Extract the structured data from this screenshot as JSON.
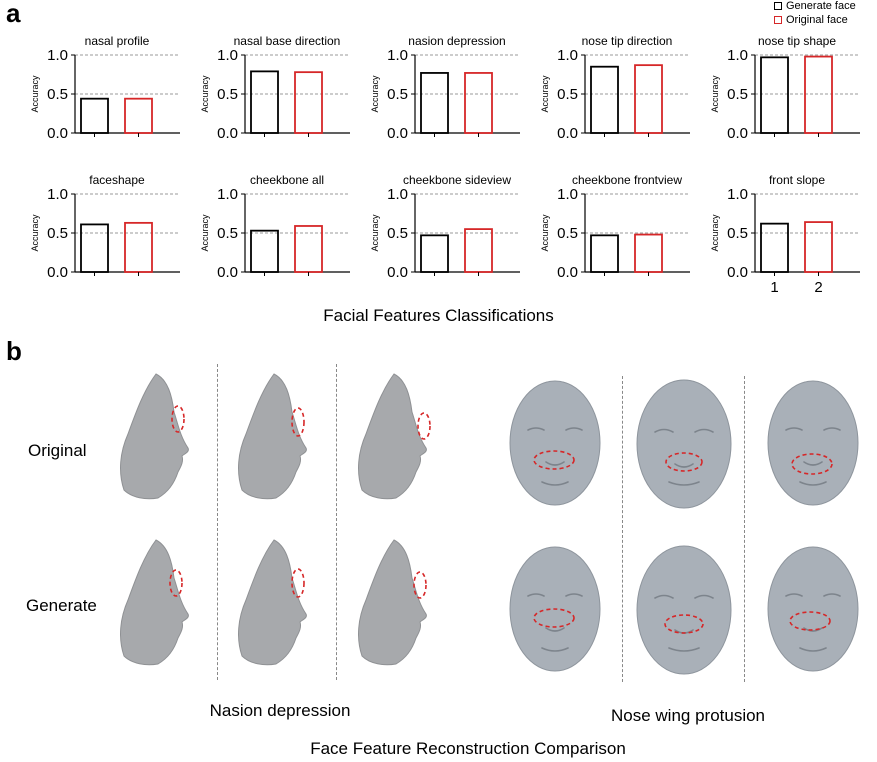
{
  "panel_a_label": "a",
  "panel_b_label": "b",
  "legend": [
    {
      "label": "Generate face",
      "color": "#000000"
    },
    {
      "label": "Original face",
      "color": "#d62728"
    }
  ],
  "chart_data": {
    "type": "bar",
    "ylabel": "Accuracy",
    "ylim": [
      0,
      1.0
    ],
    "yticks": [
      "0.0",
      "0.5",
      "1.0"
    ],
    "reference_lines": [
      0.5,
      1.0
    ],
    "grid": "dashed horizontal at 0.5 and 1.0",
    "series": [
      {
        "name": "Generate face",
        "color": "#000000"
      },
      {
        "name": "Original face",
        "color": "#d62728"
      }
    ],
    "subplots": [
      {
        "title": "nasal profile",
        "values": [
          0.44,
          0.44
        ]
      },
      {
        "title": "nasal base direction",
        "values": [
          0.79,
          0.78
        ]
      },
      {
        "title": "nasion depression",
        "values": [
          0.77,
          0.77
        ]
      },
      {
        "title": "nose tip direction",
        "values": [
          0.85,
          0.87
        ]
      },
      {
        "title": "nose tip shape",
        "values": [
          0.97,
          0.98
        ]
      },
      {
        "title": "faceshape",
        "values": [
          0.61,
          0.63
        ]
      },
      {
        "title": "cheekbone all",
        "values": [
          0.53,
          0.59
        ]
      },
      {
        "title": "cheekbone sideview",
        "values": [
          0.47,
          0.55
        ]
      },
      {
        "title": "cheekbone frontview",
        "values": [
          0.47,
          0.48
        ]
      },
      {
        "title": "front slope",
        "values": [
          0.62,
          0.64
        ],
        "xticks": [
          "1",
          "2"
        ]
      }
    ],
    "caption": "Facial Features Classifications"
  },
  "panel_b": {
    "row_labels": [
      "Original",
      "Generate"
    ],
    "group_labels": [
      "Nasion depression",
      "Nose wing protusion"
    ],
    "caption": "Face Feature Reconstruction Comparison",
    "face_color": "#a7a9ac",
    "highlight_color": "#d62728"
  }
}
